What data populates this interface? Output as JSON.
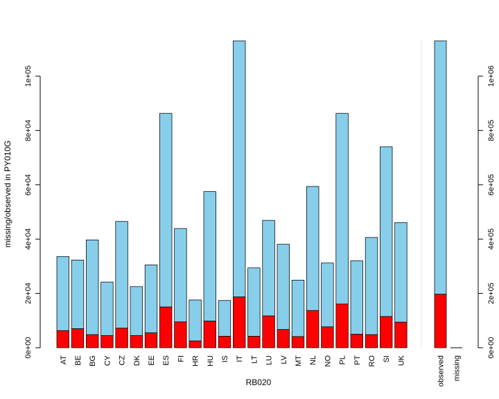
{
  "chart_data": [
    {
      "type": "bar",
      "stacked": true,
      "xlabel": "RB020",
      "ylabel": "missing/observed in PY010G",
      "ylim": [
        0,
        113000
      ],
      "yticks": [
        0,
        20000,
        40000,
        60000,
        80000,
        100000
      ],
      "ytick_labels": [
        "0e+00",
        "2e+04",
        "4e+04",
        "6e+04",
        "8e+04",
        "1e+05"
      ],
      "categories": [
        "AT",
        "BE",
        "BG",
        "CY",
        "CZ",
        "DK",
        "EE",
        "ES",
        "FI",
        "HR",
        "HU",
        "IS",
        "IT",
        "LT",
        "LU",
        "LV",
        "MT",
        "NL",
        "NO",
        "PL",
        "PT",
        "RO",
        "SI",
        "UK"
      ],
      "series": [
        {
          "name": "missing",
          "color": "#ff0000",
          "values": [
            6300,
            7000,
            4800,
            4500,
            7200,
            4500,
            5500,
            15000,
            9500,
            2500,
            9800,
            4200,
            18700,
            4200,
            11700,
            6700,
            4100,
            13700,
            7700,
            16100,
            5000,
            4800,
            11500,
            9400
          ]
        },
        {
          "name": "observed",
          "color": "#87ceeb",
          "values": [
            27300,
            25300,
            34900,
            19700,
            39300,
            18000,
            25000,
            71300,
            34400,
            15100,
            47700,
            13200,
            94300,
            25200,
            35200,
            31400,
            20800,
            45700,
            23500,
            70200,
            27000,
            35800,
            62500,
            36700
          ]
        }
      ]
    },
    {
      "type": "bar",
      "stacked": true,
      "ylim": [
        0,
        1130000
      ],
      "yticks": [
        0,
        200000,
        400000,
        600000,
        800000,
        1000000
      ],
      "ytick_labels": [
        "0e+00",
        "2e+05",
        "4e+05",
        "6e+05",
        "8e+05",
        "1e+06"
      ],
      "categories": [
        "observed",
        "missing"
      ],
      "series": [
        {
          "name": "missing",
          "color": "#ff0000",
          "values": [
            197000,
            0
          ]
        },
        {
          "name": "observed",
          "color": "#87ceeb",
          "values": [
            933000,
            0
          ]
        }
      ]
    }
  ]
}
